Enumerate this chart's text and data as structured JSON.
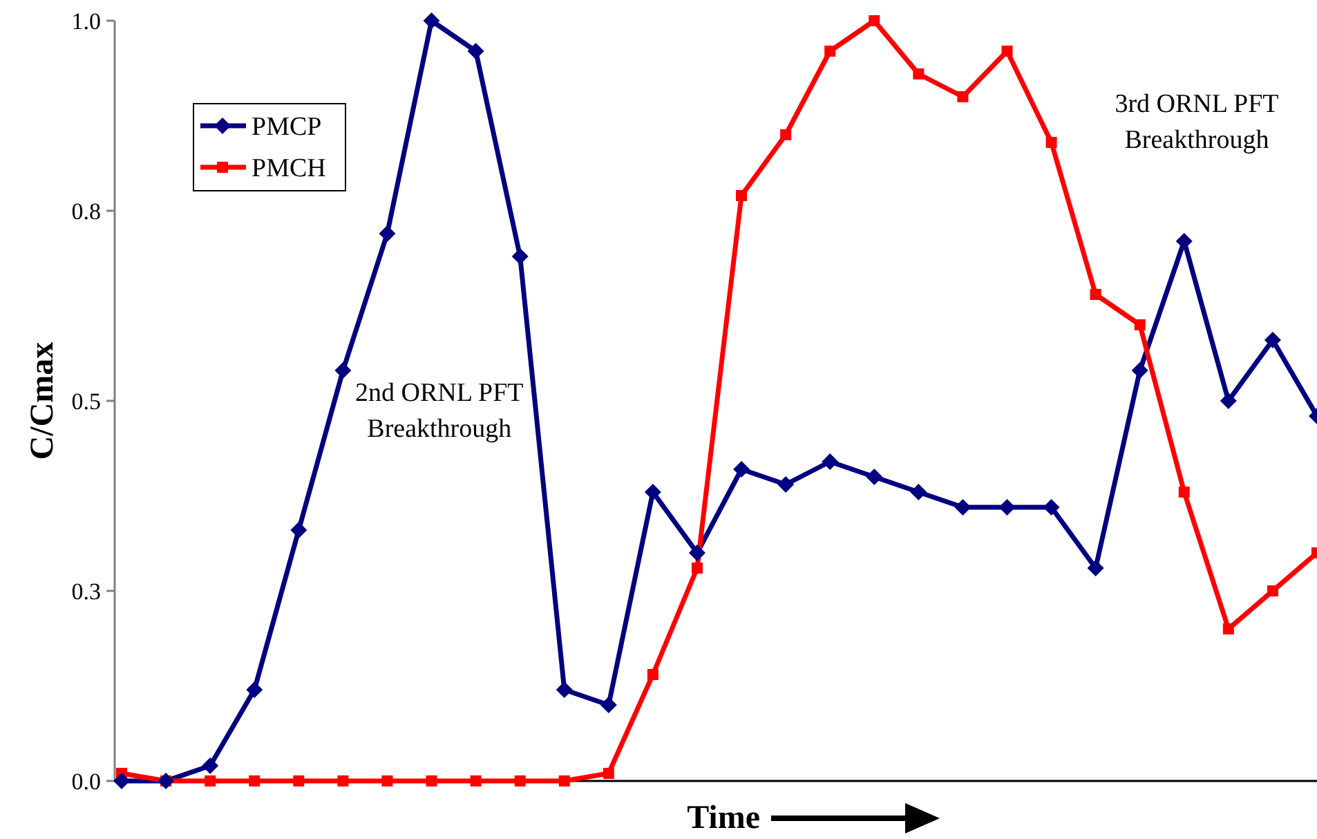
{
  "chart_data": {
    "type": "line",
    "xlabel": "Time",
    "ylabel": "C/Cmax",
    "ylim": [
      0,
      1
    ],
    "yticks": [
      {
        "value": 0,
        "label": "0.0"
      },
      {
        "value": 0.25,
        "label": "0.3"
      },
      {
        "value": 0.5,
        "label": "0.5"
      },
      {
        "value": 0.75,
        "label": "0.8"
      },
      {
        "value": 1,
        "label": "1.0"
      }
    ],
    "tick_labels": "y",
    "legend": "top left",
    "line_style": "solid",
    "annotations": [
      "2nd ORNL PFT\nBreakthrough",
      "3rd ORNL PFT\nBreakthrough"
    ],
    "categories": [
      null,
      null,
      null,
      null,
      null,
      null,
      null,
      null,
      null,
      null,
      null,
      null,
      null,
      null,
      null,
      null,
      null,
      null,
      null,
      null,
      null,
      null,
      null,
      null,
      null,
      null,
      null,
      null
    ],
    "series": [
      {
        "name": "PMCP",
        "color": "#000080",
        "marker": "diamond",
        "values": [
          0,
          0,
          0.02,
          0.12,
          0.33,
          0.54,
          0.72,
          1,
          0.96,
          0.69,
          0.12,
          0.1,
          0.38,
          0.3,
          0.41,
          0.39,
          0.42,
          0.4,
          0.38,
          0.36,
          0.36,
          0.36,
          0.28,
          0.54,
          0.71,
          0.5,
          0.58,
          0.48
        ]
      },
      {
        "name": "PMCH",
        "color": "#ff0000",
        "marker": "square",
        "values": [
          0.01,
          0,
          0,
          0,
          0,
          0,
          0,
          0,
          0,
          0,
          0,
          0.01,
          0.14,
          0.28,
          0.77,
          0.85,
          0.96,
          1,
          0.93,
          0.9,
          0.96,
          0.84,
          0.64,
          0.6,
          0.38,
          0.2,
          0.25,
          0.3
        ]
      }
    ]
  }
}
